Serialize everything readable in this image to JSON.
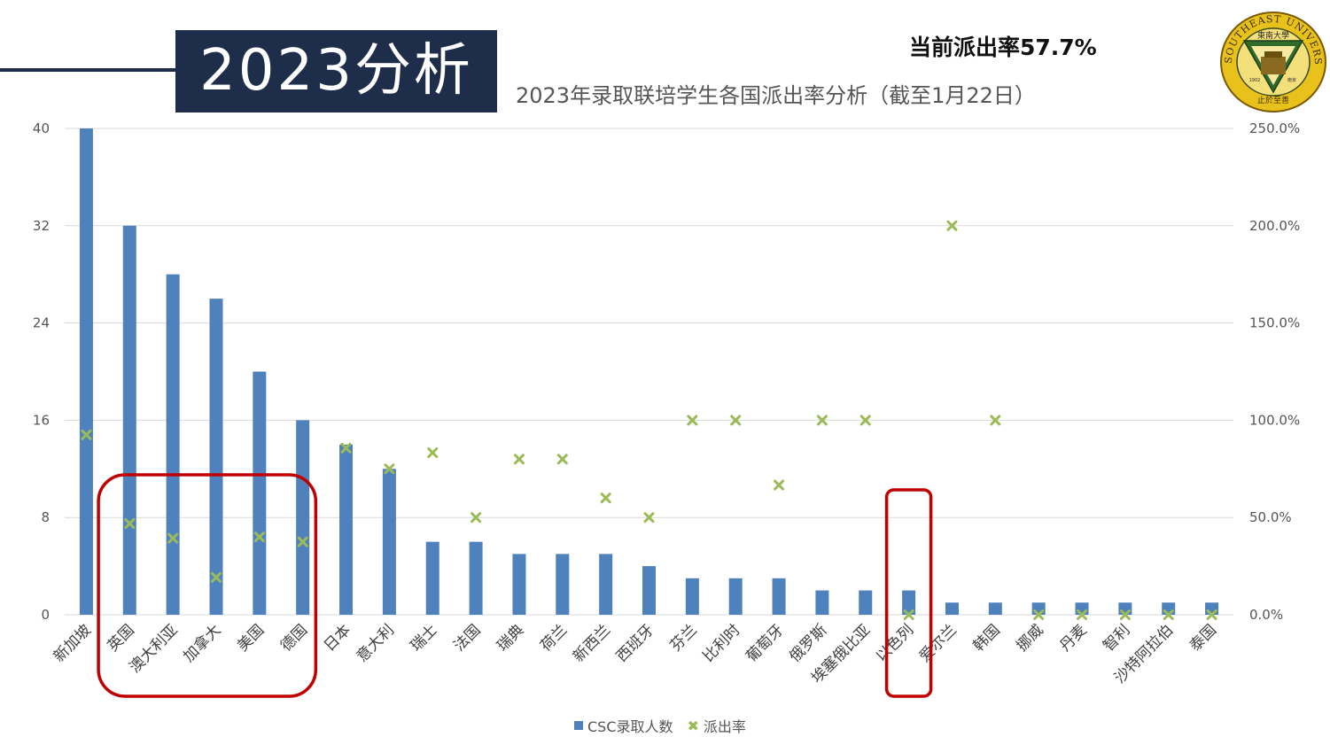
{
  "slide": {
    "title_box": "2023分析",
    "current_rate": "当前派出率57.7%"
  },
  "logo": {
    "ring_text": "SOUTHEAST UNIVERSITY",
    "inner_text": "東南大學",
    "year": "1902",
    "city": "南京",
    "motto": "止於至善"
  },
  "chart_data": {
    "type": "bar",
    "title": "2023年录取联培学生各国派出率分析（截至1月22日）",
    "categories": [
      "新加坡",
      "英国",
      "澳大利亚",
      "加拿大",
      "美国",
      "德国",
      "日本",
      "意大利",
      "瑞士",
      "法国",
      "瑞典",
      "荷兰",
      "新西兰",
      "西班牙",
      "芬兰",
      "比利时",
      "葡萄牙",
      "俄罗斯",
      "埃塞俄比亚",
      "以色列",
      "爱尔兰",
      "韩国",
      "挪威",
      "丹麦",
      "智利",
      "沙特阿拉伯",
      "泰国"
    ],
    "series": [
      {
        "name": "CSC录取人数",
        "type": "bar",
        "axis": "left",
        "color": "#4f81bd",
        "values": [
          40,
          32,
          28,
          26,
          20,
          16,
          14,
          12,
          6,
          6,
          5,
          5,
          5,
          4,
          3,
          3,
          3,
          2,
          2,
          2,
          1,
          1,
          1,
          1,
          1,
          1,
          1
        ]
      },
      {
        "name": "派出率",
        "type": "scatter",
        "axis": "right",
        "color": "#9bbb59",
        "values": [
          92.5,
          46.9,
          39.3,
          19.2,
          40.0,
          37.5,
          85.7,
          75.0,
          83.3,
          50.0,
          80.0,
          80.0,
          60.0,
          50.0,
          100.0,
          100.0,
          66.7,
          100.0,
          100.0,
          0.0,
          200.0,
          100.0,
          0.0,
          0.0,
          0.0,
          0.0,
          0.0
        ]
      }
    ],
    "y_left": {
      "min": 0,
      "max": 40,
      "ticks": [
        "0",
        "8",
        "16",
        "24",
        "32",
        "40"
      ]
    },
    "y_right": {
      "min": 0,
      "max": 250,
      "ticks": [
        "0.0%",
        "50.0%",
        "100.0%",
        "150.0%",
        "200.0%",
        "250.0%"
      ]
    },
    "grid": true,
    "legend_position": "bottom",
    "highlight_boxes": [
      {
        "from": "英国",
        "to": "德国",
        "color": "#c00000"
      },
      {
        "from": "以色列",
        "to": "以色列",
        "color": "#c00000"
      }
    ]
  }
}
